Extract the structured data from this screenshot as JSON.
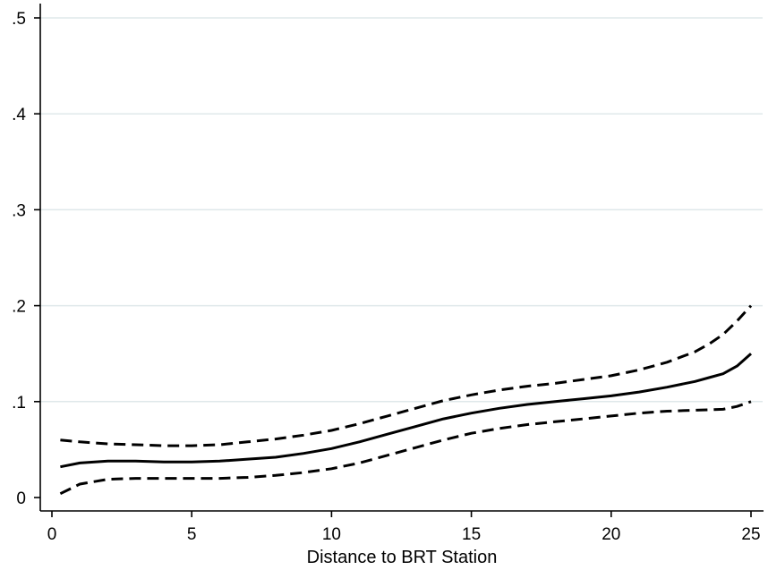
{
  "chart_data": {
    "type": "line",
    "title": "",
    "xlabel": "Distance to BRT Station",
    "ylabel": "",
    "xlim": [
      0,
      25
    ],
    "ylim": [
      0,
      0.5
    ],
    "xticks": [
      0,
      5,
      10,
      15,
      20,
      25
    ],
    "xtick_labels": [
      "0",
      "5",
      "10",
      "15",
      "20",
      "25"
    ],
    "yticks": [
      0,
      0.1,
      0.2,
      0.3,
      0.4,
      0.5
    ],
    "ytick_labels": [
      "0",
      ".1",
      ".2",
      ".3",
      ".4",
      ".5"
    ],
    "grid": "horizontal",
    "legend": "none",
    "colors": {
      "line": "#000000",
      "grid": "#dfe8ea",
      "axis": "#000000",
      "background": "#ffffff"
    },
    "series": [
      {
        "style": "solid",
        "x": [
          0.3,
          1,
          2,
          3,
          4,
          5,
          6,
          7,
          8,
          9,
          10,
          11,
          12,
          13,
          14,
          15,
          16,
          17,
          18,
          19,
          20,
          21,
          22,
          23,
          23.5,
          24,
          24.5,
          25
        ],
        "y": [
          0.032,
          0.036,
          0.038,
          0.038,
          0.037,
          0.037,
          0.038,
          0.04,
          0.042,
          0.046,
          0.051,
          0.058,
          0.066,
          0.074,
          0.082,
          0.088,
          0.093,
          0.097,
          0.1,
          0.103,
          0.106,
          0.11,
          0.115,
          0.121,
          0.125,
          0.129,
          0.137,
          0.15
        ]
      },
      {
        "style": "dashed",
        "x": [
          0.3,
          1,
          2,
          3,
          4,
          5,
          6,
          7,
          8,
          9,
          10,
          11,
          12,
          13,
          14,
          15,
          16,
          17,
          18,
          19,
          20,
          21,
          22,
          23,
          23.5,
          24,
          24.5,
          25
        ],
        "y": [
          0.06,
          0.058,
          0.056,
          0.055,
          0.054,
          0.054,
          0.055,
          0.058,
          0.061,
          0.065,
          0.07,
          0.077,
          0.085,
          0.093,
          0.101,
          0.107,
          0.112,
          0.116,
          0.119,
          0.123,
          0.127,
          0.133,
          0.141,
          0.152,
          0.16,
          0.17,
          0.184,
          0.2
        ]
      },
      {
        "style": "dashed",
        "x": [
          0.3,
          1,
          2,
          3,
          4,
          5,
          6,
          7,
          8,
          9,
          10,
          11,
          12,
          13,
          14,
          15,
          16,
          17,
          18,
          19,
          20,
          21,
          22,
          23,
          24,
          24.5,
          25
        ],
        "y": [
          0.004,
          0.014,
          0.019,
          0.02,
          0.02,
          0.02,
          0.02,
          0.021,
          0.023,
          0.026,
          0.03,
          0.036,
          0.044,
          0.052,
          0.06,
          0.067,
          0.072,
          0.076,
          0.079,
          0.082,
          0.085,
          0.088,
          0.09,
          0.091,
          0.092,
          0.095,
          0.1
        ]
      }
    ]
  }
}
